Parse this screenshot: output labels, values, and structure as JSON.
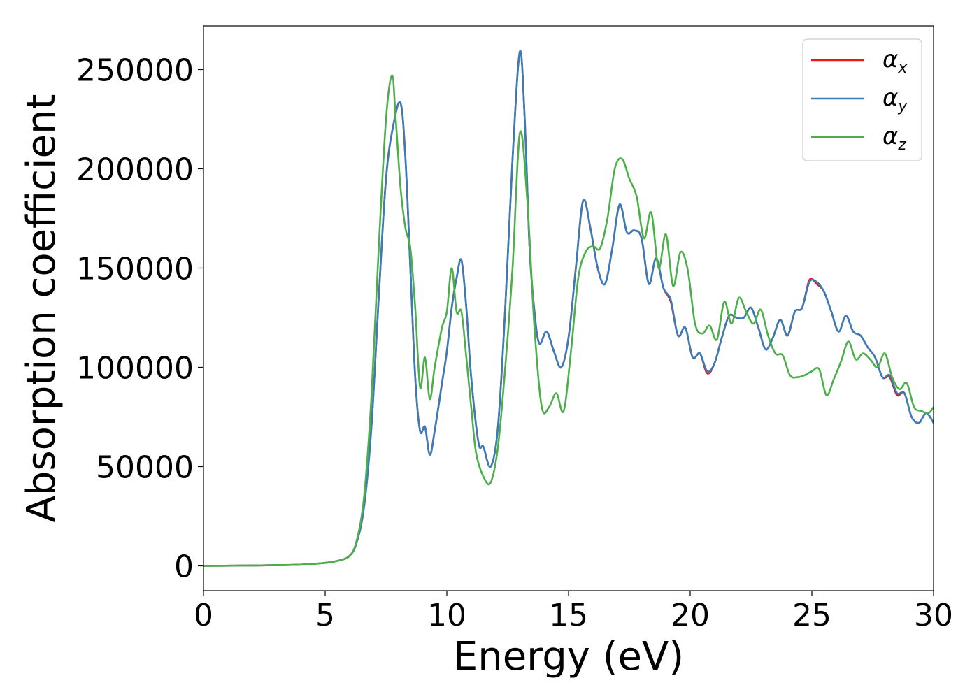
{
  "chart_data": {
    "type": "line",
    "title": "",
    "xlabel": "Energy (eV)",
    "ylabel": "Absorption coefficient",
    "xlim": [
      0,
      30
    ],
    "ylim": [
      -12500,
      272000
    ],
    "xticks": [
      0,
      5,
      10,
      15,
      20,
      25,
      30
    ],
    "xtick_labels": [
      "0",
      "5",
      "10",
      "15",
      "20",
      "25",
      "30"
    ],
    "yticks": [
      0,
      50000,
      100000,
      150000,
      200000,
      250000
    ],
    "ytick_labels": [
      "0",
      "50000",
      "100000",
      "150000",
      "200000",
      "250000"
    ],
    "grid": false,
    "legend_position": "top-right",
    "series": [
      {
        "name": "α_x",
        "legend_symbol": "α",
        "legend_subscript": "x",
        "color": "#e41a1c",
        "x": [
          0,
          2,
          4,
          5,
          5.5,
          6,
          6.3,
          6.6,
          6.9,
          7.2,
          7.5,
          7.8,
          8.1,
          8.3,
          8.5,
          8.7,
          8.9,
          9.1,
          9.3,
          9.5,
          9.8,
          10.0,
          10.2,
          10.4,
          10.6,
          10.8,
          11.0,
          11.3,
          11.5,
          11.8,
          12.1,
          12.4,
          12.7,
          13.0,
          13.2,
          13.4,
          13.6,
          13.8,
          14.1,
          14.4,
          14.7,
          15.0,
          15.3,
          15.6,
          15.9,
          16.2,
          16.5,
          16.8,
          17.1,
          17.4,
          17.7,
          18.0,
          18.3,
          18.6,
          18.9,
          19.2,
          19.5,
          19.8,
          20.1,
          20.4,
          20.7,
          21.0,
          21.3,
          21.6,
          21.9,
          22.2,
          22.5,
          22.8,
          23.1,
          23.4,
          23.7,
          24.0,
          24.3,
          24.6,
          24.9,
          25.2,
          25.5,
          25.8,
          26.1,
          26.4,
          26.7,
          27.0,
          27.3,
          27.6,
          27.9,
          28.2,
          28.5,
          28.8,
          29.1,
          29.4,
          29.7,
          30.0
        ],
        "values": [
          0,
          200,
          600,
          1500,
          2500,
          5000,
          12000,
          30000,
          70000,
          135000,
          195000,
          222000,
          233000,
          205000,
          150000,
          95000,
          68000,
          70000,
          56000,
          68000,
          92000,
          108000,
          130000,
          145000,
          154000,
          130000,
          95000,
          62000,
          60000,
          50000,
          70000,
          130000,
          205000,
          259000,
          225000,
          160000,
          128000,
          112000,
          118000,
          108000,
          100000,
          115000,
          150000,
          184000,
          170000,
          150000,
          142000,
          160000,
          182000,
          168000,
          169000,
          165000,
          142000,
          155000,
          140000,
          133000,
          116000,
          120000,
          105000,
          107000,
          97000,
          102000,
          115000,
          126000,
          125000,
          125000,
          130000,
          120000,
          109000,
          115000,
          124000,
          116000,
          128000,
          130000,
          144000,
          142000,
          138000,
          128000,
          118000,
          126000,
          118000,
          116000,
          110000,
          105000,
          95000,
          95000,
          86000,
          87000,
          75000,
          72000,
          77000,
          72000
        ]
      },
      {
        "name": "α_y",
        "legend_symbol": "α",
        "legend_subscript": "y",
        "color": "#377eb8",
        "x": [
          0,
          2,
          4,
          5,
          5.5,
          6,
          6.3,
          6.6,
          6.9,
          7.2,
          7.5,
          7.8,
          8.1,
          8.3,
          8.5,
          8.7,
          8.9,
          9.1,
          9.3,
          9.5,
          9.8,
          10.0,
          10.2,
          10.4,
          10.6,
          10.8,
          11.0,
          11.3,
          11.5,
          11.8,
          12.1,
          12.4,
          12.7,
          13.0,
          13.2,
          13.4,
          13.6,
          13.8,
          14.1,
          14.4,
          14.7,
          15.0,
          15.3,
          15.6,
          15.9,
          16.2,
          16.5,
          16.8,
          17.1,
          17.4,
          17.7,
          18.0,
          18.3,
          18.6,
          18.9,
          19.2,
          19.5,
          19.8,
          20.1,
          20.4,
          20.7,
          21.0,
          21.3,
          21.6,
          21.9,
          22.2,
          22.5,
          22.8,
          23.1,
          23.4,
          23.7,
          24.0,
          24.3,
          24.6,
          24.9,
          25.2,
          25.5,
          25.8,
          26.1,
          26.4,
          26.7,
          27.0,
          27.3,
          27.6,
          27.9,
          28.2,
          28.5,
          28.8,
          29.1,
          29.4,
          29.7,
          30.0
        ],
        "values": [
          0,
          200,
          600,
          1500,
          2500,
          5000,
          12000,
          30000,
          70000,
          135000,
          195000,
          222000,
          233000,
          205000,
          150000,
          95000,
          68000,
          70000,
          56000,
          68000,
          92000,
          108000,
          130000,
          145000,
          154000,
          130000,
          95000,
          62000,
          60000,
          50000,
          70000,
          130000,
          205000,
          259000,
          225000,
          160000,
          128000,
          112000,
          118000,
          108000,
          100000,
          115000,
          150000,
          184000,
          170000,
          150000,
          142000,
          160000,
          182000,
          168000,
          169000,
          165000,
          142000,
          155000,
          140000,
          134000,
          116000,
          120000,
          105000,
          107000,
          98000,
          102000,
          115000,
          126000,
          125000,
          125000,
          130000,
          120000,
          109000,
          115000,
          124000,
          116000,
          128000,
          130000,
          143000,
          143000,
          138000,
          128000,
          118000,
          126000,
          118000,
          116000,
          110000,
          105000,
          95000,
          96000,
          87000,
          87000,
          75000,
          72000,
          77000,
          72000
        ]
      },
      {
        "name": "α_z",
        "legend_symbol": "α",
        "legend_subscript": "z",
        "color": "#4daf4a",
        "x": [
          0,
          2,
          4,
          5,
          5.5,
          6,
          6.3,
          6.6,
          6.9,
          7.2,
          7.5,
          7.75,
          7.9,
          8.1,
          8.3,
          8.5,
          8.7,
          8.9,
          9.1,
          9.3,
          9.5,
          9.8,
          10.0,
          10.2,
          10.4,
          10.6,
          10.8,
          11.0,
          11.2,
          11.5,
          11.8,
          12.1,
          12.4,
          12.7,
          13.0,
          13.3,
          13.6,
          13.9,
          14.2,
          14.5,
          14.8,
          15.1,
          15.4,
          15.7,
          16.0,
          16.3,
          16.6,
          16.9,
          17.2,
          17.5,
          17.8,
          18.1,
          18.4,
          18.7,
          19.0,
          19.3,
          19.6,
          19.9,
          20.2,
          20.5,
          20.8,
          21.1,
          21.4,
          21.7,
          22.0,
          22.3,
          22.6,
          22.9,
          23.2,
          23.5,
          23.8,
          24.1,
          24.4,
          24.7,
          25.0,
          25.3,
          25.6,
          25.9,
          26.2,
          26.5,
          26.8,
          27.1,
          27.4,
          27.7,
          28.0,
          28.3,
          28.6,
          28.9,
          29.2,
          29.5,
          29.8,
          30.0
        ],
        "values": [
          0,
          200,
          600,
          1500,
          2500,
          5000,
          13000,
          35000,
          85000,
          160000,
          225000,
          247000,
          225000,
          190000,
          170000,
          160000,
          130000,
          90000,
          105000,
          84000,
          100000,
          120000,
          128000,
          150000,
          128000,
          128000,
          105000,
          80000,
          57000,
          45000,
          42000,
          60000,
          100000,
          150000,
          218000,
          185000,
          120000,
          80000,
          80000,
          87000,
          78000,
          108000,
          145000,
          158000,
          161000,
          160000,
          175000,
          200000,
          205000,
          195000,
          186000,
          165000,
          178000,
          150000,
          167000,
          141000,
          158000,
          149000,
          122000,
          117000,
          121000,
          114000,
          133000,
          122000,
          135000,
          128000,
          122000,
          129000,
          116000,
          107000,
          106000,
          96000,
          95000,
          96000,
          98000,
          99000,
          86000,
          94000,
          103000,
          113000,
          104000,
          107000,
          104000,
          100000,
          107000,
          95000,
          89000,
          92000,
          80000,
          78000,
          77000,
          80000
        ]
      }
    ]
  }
}
